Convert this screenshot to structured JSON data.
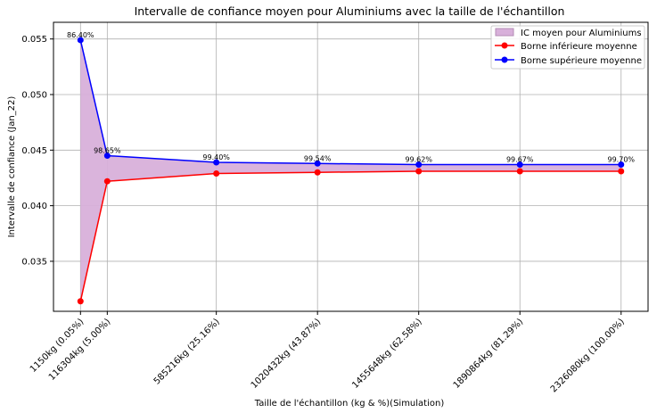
{
  "chart_data": {
    "type": "line",
    "title": "Intervalle de confiance moyen pour Aluminiums avec la taille de l'échantillon",
    "xlabel": "Taille de l'échantillon (kg & %)(Simulation)",
    "ylabel": "Intervalle de confiance (Jan_22)",
    "x": [
      1150,
      116304,
      585216,
      1020432,
      1455648,
      1890864,
      2326080
    ],
    "x_tick_labels": [
      "1150kg (0.05%)",
      "116304kg (5.00%)",
      "585216kg (25.16%)",
      "1020432kg (43.87%)",
      "1455648kg (62.58%)",
      "1890864kg (81.29%)",
      "2326080kg (100.00%)"
    ],
    "xlim": [
      -115000,
      2442000
    ],
    "ylim": [
      0.0305,
      0.0565
    ],
    "y_ticks": [
      0.035,
      0.04,
      0.045,
      0.05,
      0.055
    ],
    "y_tick_labels": [
      "0.035",
      "0.040",
      "0.045",
      "0.050",
      "0.055"
    ],
    "series": [
      {
        "name": "Borne inférieure moyenne",
        "color": "#ff0000",
        "values": [
          0.0314,
          0.0422,
          0.0429,
          0.043,
          0.0431,
          0.0431,
          0.0431
        ]
      },
      {
        "name": "Borne supérieure moyenne",
        "color": "#0000ff",
        "values": [
          0.0549,
          0.0445,
          0.0439,
          0.0438,
          0.0437,
          0.0437,
          0.0437
        ]
      }
    ],
    "fill": {
      "name": "IC moyen pour Aluminiums",
      "color": "#d8b0da"
    },
    "annotations": [
      "86.40%",
      "98.65%",
      "99.40%",
      "99.54%",
      "99.62%",
      "99.67%",
      "99.70%"
    ],
    "grid": true,
    "legend_position": "top-right"
  }
}
